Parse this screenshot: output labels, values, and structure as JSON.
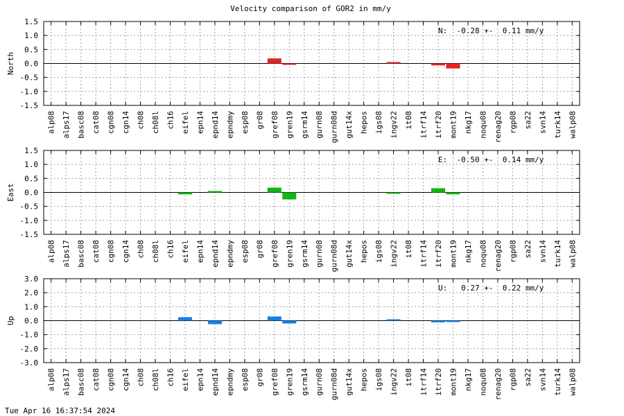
{
  "chart_data": {
    "type": "bar",
    "title": "Velocity comparison of GOR2 in mm/y",
    "categories": [
      "alp08",
      "alps17",
      "basc08",
      "cat08",
      "cgn08",
      "cgn14",
      "ch08",
      "ch08l",
      "ch16",
      "eifel",
      "epn14",
      "epnd14",
      "epndmy",
      "esp08",
      "gr08",
      "gref08",
      "gren19",
      "gsrm14",
      "gurn08",
      "gurn08d",
      "gut14x",
      "hepos",
      "igs08",
      "ingv22",
      "it08",
      "itrf14",
      "itrf20",
      "mont19",
      "nkg17",
      "noqu08",
      "renag20",
      "rgp08",
      "sa22",
      "svn14",
      "turk14",
      "walp08"
    ],
    "grid": true,
    "panels": [
      {
        "name": "north",
        "ylabel": "North",
        "ylim": [
          -1.5,
          1.5
        ],
        "yticks": [
          1.5,
          1.0,
          0.5,
          0.0,
          -0.5,
          -1.0,
          -1.5
        ],
        "yticklabels": [
          "1.5",
          "1.0",
          "0.5",
          "0.0",
          "-0.5",
          "-1.0",
          "-1.5"
        ],
        "color": "#e32424",
        "stat_text": "N:  -0.28 +-  0.11 mm/y",
        "values": [
          null,
          null,
          null,
          null,
          null,
          null,
          null,
          null,
          null,
          null,
          null,
          null,
          null,
          null,
          null,
          0.18,
          -0.03,
          null,
          null,
          null,
          null,
          null,
          null,
          0.02,
          null,
          null,
          -0.07,
          -0.18,
          null,
          null,
          null,
          null,
          null,
          null,
          null,
          null
        ]
      },
      {
        "name": "east",
        "ylabel": "East",
        "ylim": [
          -1.5,
          1.5
        ],
        "yticks": [
          1.5,
          1.0,
          0.5,
          0.0,
          -0.5,
          -1.0,
          -1.5
        ],
        "yticklabels": [
          "1.5",
          "1.0",
          "0.5",
          "0.0",
          "-0.5",
          "-1.0",
          "-1.5"
        ],
        "color": "#14b414",
        "stat_text": "E:  -0.50 +-  0.14 mm/y",
        "values": [
          null,
          null,
          null,
          null,
          null,
          null,
          null,
          null,
          null,
          -0.07,
          null,
          0.02,
          null,
          null,
          null,
          0.17,
          -0.25,
          null,
          null,
          null,
          null,
          null,
          null,
          -0.02,
          null,
          null,
          0.15,
          -0.07,
          null,
          null,
          null,
          null,
          null,
          null,
          null,
          null
        ]
      },
      {
        "name": "up",
        "ylabel": "Up",
        "ylim": [
          -3.0,
          3.0
        ],
        "yticks": [
          3.0,
          2.0,
          1.0,
          0.0,
          -1.0,
          -2.0,
          -3.0
        ],
        "yticklabels": [
          "3.0",
          "2.0",
          "1.0",
          "0.0",
          "-1.0",
          "-2.0",
          "-3.0"
        ],
        "color": "#1480e6",
        "stat_text": "U:   0.27 +-  0.22 mm/y",
        "values": [
          null,
          null,
          null,
          null,
          null,
          null,
          null,
          null,
          null,
          0.25,
          null,
          -0.25,
          null,
          null,
          null,
          0.3,
          -0.2,
          null,
          null,
          null,
          null,
          null,
          null,
          0.08,
          null,
          null,
          -0.12,
          -0.07,
          null,
          null,
          null,
          null,
          null,
          null,
          null,
          null
        ]
      }
    ]
  },
  "footer": {
    "timestamp": "Tue Apr 16 16:37:54 2024"
  }
}
